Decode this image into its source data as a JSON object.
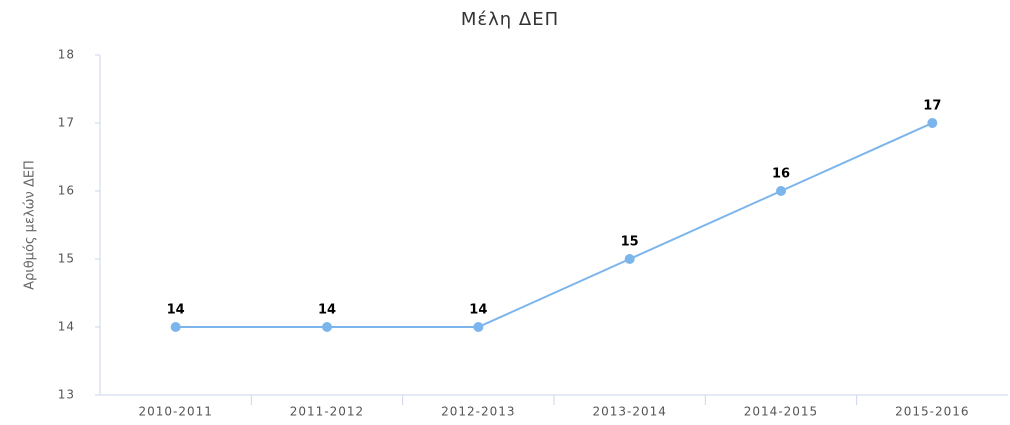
{
  "chart_data": {
    "type": "line",
    "title": "Μέλη ΔΕΠ",
    "y_label": "Αριθμός μελών ΔΕΠ",
    "categories": [
      "2010-2011",
      "2011-2012",
      "2012-2013",
      "2013-2014",
      "2014-2015",
      "2015-2016"
    ],
    "values": [
      14,
      14,
      14,
      15,
      16,
      17
    ],
    "color": "#7cb5ec",
    "ylim": [
      13,
      18
    ],
    "yticks": [
      13,
      14,
      15,
      16,
      17,
      18
    ],
    "grid": false
  }
}
